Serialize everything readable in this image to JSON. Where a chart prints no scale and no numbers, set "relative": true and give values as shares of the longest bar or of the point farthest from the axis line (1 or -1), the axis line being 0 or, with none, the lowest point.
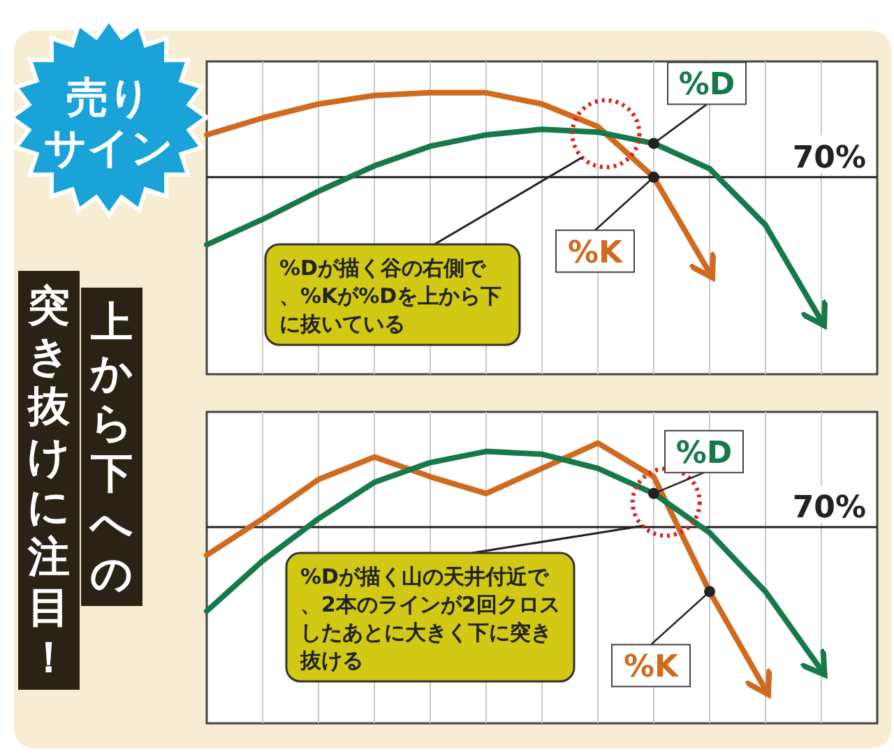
{
  "chart_data": [
    {
      "type": "line",
      "title": "売りサイン",
      "relative": true,
      "grid": "x",
      "categories": [
        null,
        null,
        null,
        null,
        null,
        null,
        null,
        null,
        null,
        null,
        null,
        null,
        null
      ],
      "ref_lines": [
        {
          "axis": "y",
          "value": 0.7,
          "label": "70%",
          "color": "#222222"
        }
      ],
      "annotations": [
        "%Dが描く谷の右側で、%Kが%Dを上から下に抜いている",
        "上から下への",
        "突き抜けに注目！"
      ],
      "series": [
        {
          "name": "%K",
          "color": "#cf6a1e",
          "values": [
            0.85,
            0.91,
            0.96,
            0.99,
            1,
            1,
            0.96,
            0.88,
            0.7,
            0.36,
            null,
            null,
            null
          ]
        },
        {
          "name": "%D",
          "color": "#17784a",
          "values": [
            0.46,
            0.55,
            0.65,
            0.74,
            0.81,
            0.85,
            0.87,
            0.86,
            0.82,
            0.73,
            0.53,
            0.19,
            null
          ]
        }
      ]
    },
    {
      "type": "line",
      "relative": true,
      "grid": "x",
      "categories": [
        null,
        null,
        null,
        null,
        null,
        null,
        null,
        null,
        null,
        null,
        null,
        null,
        null
      ],
      "ref_lines": [
        {
          "axis": "y",
          "value": 0.7,
          "label": "70%",
          "color": "#222222"
        }
      ],
      "annotations": [
        "%Dが描く山の天井付近で、2本のラインが2回クロスしたあとに大きく下に突き抜ける"
      ],
      "series": [
        {
          "name": "%K",
          "color": "#cf6a1e",
          "values": [
            0.6,
            0.73,
            0.87,
            0.95,
            0.88,
            0.82,
            0.91,
            1,
            0.88,
            0.47,
            0.12,
            null,
            null
          ]
        },
        {
          "name": "%D",
          "color": "#17784a",
          "values": [
            0.4,
            0.58,
            0.73,
            0.86,
            0.93,
            0.97,
            0.96,
            0.91,
            0.82,
            0.68,
            0.47,
            0.19,
            null
          ]
        }
      ]
    }
  ]
}
